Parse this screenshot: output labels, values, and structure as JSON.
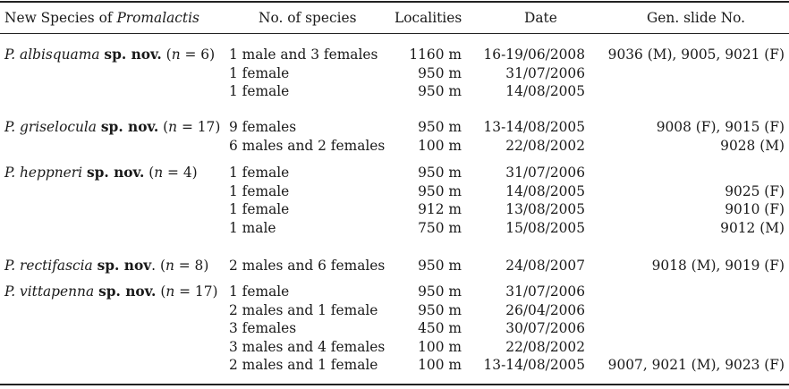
{
  "headers": {
    "species_prefix": "New Species of ",
    "species_genus": "Promalactis",
    "count": "No. of species",
    "localities": "Localities",
    "date": "Date",
    "slide": "Gen. slide No."
  },
  "groups": [
    {
      "name_italic": "P. albisquama",
      "name_bold": "sp. nov.",
      "n_open": " (",
      "n_var": "n",
      "n_value": " = 6)",
      "rows": [
        {
          "count": "1 male and 3 females",
          "locality": "1160 m",
          "date": "16-19/06/2008",
          "slide": "9036 (M), 9005, 9021 (F)"
        },
        {
          "count": "1 female",
          "locality": "950 m",
          "date": "31/07/2006",
          "slide": ""
        },
        {
          "count": "1 female",
          "locality": "950 m",
          "date": "14/08/2005",
          "slide": ""
        }
      ]
    },
    {
      "name_italic": "P. griselocula",
      "name_bold": "sp. nov.",
      "n_open": " (",
      "n_var": "n",
      "n_value": " = 17)",
      "rows": [
        {
          "count": "9 females",
          "locality": "950 m",
          "date": "13-14/08/2005",
          "slide": "9008 (F), 9015 (F)"
        },
        {
          "count": "6 males and 2 females",
          "locality": "100 m",
          "date": "22/08/2002",
          "slide": "9028 (M)"
        }
      ]
    },
    {
      "name_italic": "P. heppneri",
      "name_bold": "sp. nov.",
      "n_open": " (",
      "n_var": "n",
      "n_value": " = 4)",
      "rows": [
        {
          "count": "1 female",
          "locality": "950 m",
          "date": "31/07/2006",
          "slide": ""
        },
        {
          "count": "1 female",
          "locality": "950 m",
          "date": "14/08/2005",
          "slide": "9025 (F)"
        },
        {
          "count": "1 female",
          "locality": "912 m",
          "date": "13/08/2005",
          "slide": "9010 (F)"
        },
        {
          "count": "1 male",
          "locality": "750 m",
          "date": "15/08/2005",
          "slide": "9012 (M)"
        }
      ]
    },
    {
      "name_italic": "P. rectifascia",
      "name_bold": "sp. nov",
      "n_open": ". (",
      "n_var": "n",
      "n_value": " = 8)",
      "rows": [
        {
          "count": "2 males and 6 females",
          "locality": "950 m",
          "date": "24/08/2007",
          "slide": "9018 (M), 9019 (F)"
        }
      ]
    },
    {
      "name_italic": "P. vittapenna",
      "name_bold": "sp. nov.",
      "n_open": " (",
      "n_var": "n",
      "n_value": " = 17)",
      "rows": [
        {
          "count": "1 female",
          "locality": "950 m",
          "date": "31/07/2006",
          "slide": ""
        },
        {
          "count": "2 males and 1 female",
          "locality": "950 m",
          "date": "26/04/2006",
          "slide": ""
        },
        {
          "count": "3 females",
          "locality": "450 m",
          "date": "30/07/2006",
          "slide": ""
        },
        {
          "count": "3 males and 4 females",
          "locality": "100 m",
          "date": "22/08/2002",
          "slide": ""
        },
        {
          "count": "2 males and 1 female",
          "locality": "100 m",
          "date": "13-14/08/2005",
          "slide": "9007, 9021 (M), 9023 (F)"
        }
      ]
    }
  ]
}
